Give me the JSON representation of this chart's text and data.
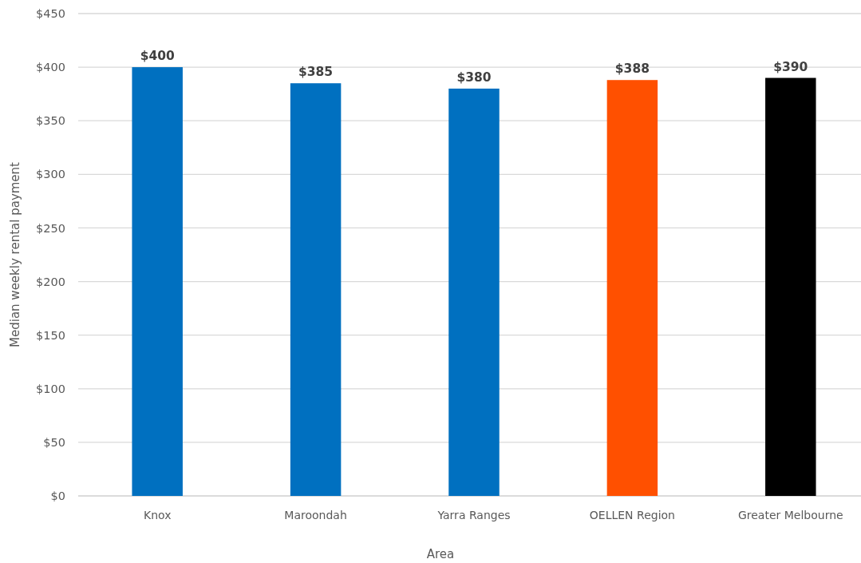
{
  "chart_data": {
    "type": "bar",
    "xlabel": "Area",
    "ylabel": "Median weekly rental payment",
    "categories": [
      "Knox",
      "Maroondah",
      "Yarra Ranges",
      "OELLEN Region",
      "Greater Melbourne"
    ],
    "values": [
      400,
      385,
      380,
      388,
      390
    ],
    "colors": [
      "#0070c0",
      "#0070c0",
      "#0070c0",
      "#ff5000",
      "#000000"
    ],
    "value_labels": [
      "$400",
      "$385",
      "$380",
      "$388",
      "$390"
    ],
    "ylim": [
      0,
      450
    ],
    "yticks": [
      {
        "value": 0,
        "label": "$0"
      },
      {
        "value": 50,
        "label": "$50"
      },
      {
        "value": 100,
        "label": "$100"
      },
      {
        "value": 150,
        "label": "$150"
      },
      {
        "value": 200,
        "label": "$200"
      },
      {
        "value": 250,
        "label": "$250"
      },
      {
        "value": 300,
        "label": "$300"
      },
      {
        "value": 350,
        "label": "$350"
      },
      {
        "value": 400,
        "label": "$400"
      },
      {
        "value": 450,
        "label": "$450"
      }
    ],
    "grid": "y"
  }
}
